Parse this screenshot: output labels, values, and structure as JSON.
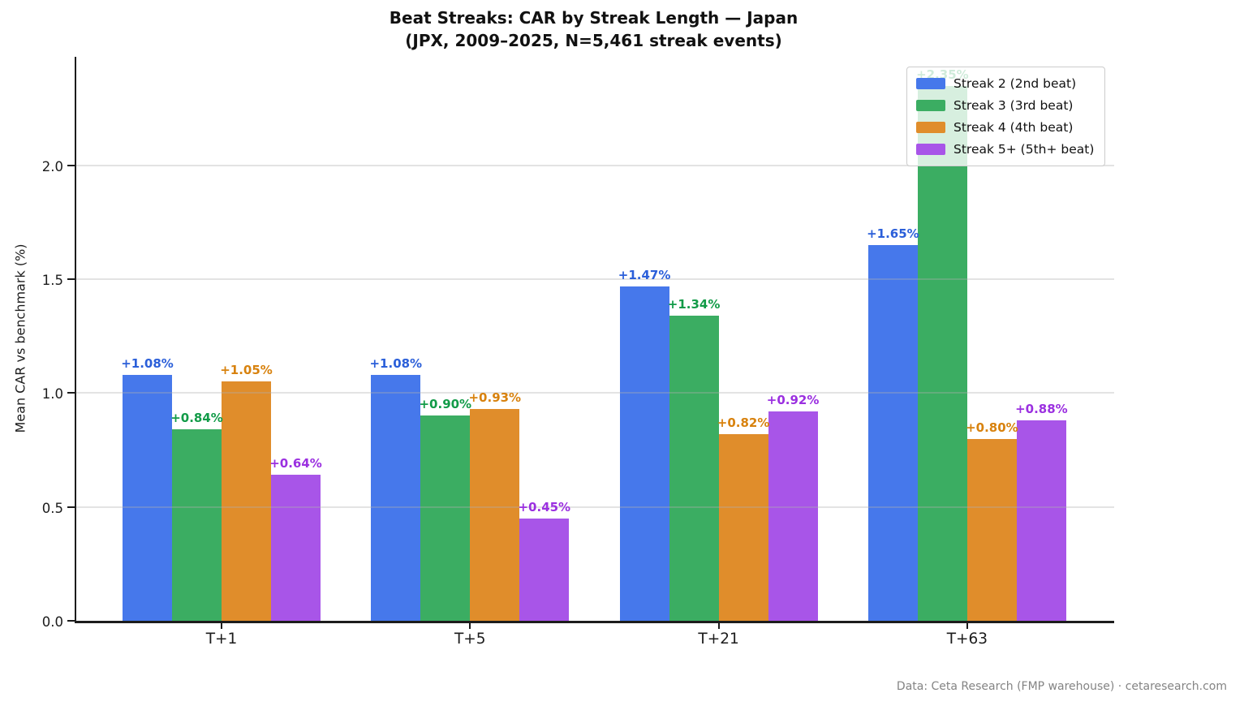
{
  "chart_data": {
    "type": "bar",
    "title": "Beat Streaks: CAR by Streak Length — Japan",
    "subtitle": "(JPX, 2009–2025, N=5,461 streak events)",
    "ylabel": "Mean CAR vs benchmark (%)",
    "categories": [
      "T+1",
      "T+5",
      "T+21",
      "T+63"
    ],
    "series": [
      {
        "name": "Streak 2 (2nd beat)",
        "color": "#4678EB",
        "label_color": "#2B5FD9",
        "values": [
          1.08,
          1.08,
          1.47,
          1.65
        ],
        "labels": [
          "+1.08%",
          "+1.08%",
          "+1.47%",
          "+1.65%"
        ]
      },
      {
        "name": "Streak 3 (3rd beat)",
        "color": "#3BAD62",
        "label_color": "#129B48",
        "values": [
          0.84,
          0.9,
          1.34,
          2.35
        ],
        "labels": [
          "+0.84%",
          "+0.90%",
          "+1.34%",
          "+2.35%"
        ]
      },
      {
        "name": "Streak 4 (4th beat)",
        "color": "#E08D2B",
        "label_color": "#D8820E",
        "values": [
          1.05,
          0.93,
          0.82,
          0.8
        ],
        "labels": [
          "+1.05%",
          "+0.93%",
          "+0.82%",
          "+0.80%"
        ]
      },
      {
        "name": "Streak 5+ (5th+ beat)",
        "color": "#A855E8",
        "label_color": "#9B30E0",
        "values": [
          0.64,
          0.45,
          0.92,
          0.88
        ],
        "labels": [
          "+0.64%",
          "+0.45%",
          "+0.92%",
          "+0.88%"
        ]
      }
    ],
    "ytick_labels": [
      "0.0",
      "0.5",
      "1.0",
      "1.5",
      "2.0"
    ],
    "ytick_values": [
      0,
      0.5,
      1.0,
      1.5,
      2.0
    ],
    "ylim": [
      0,
      2.477
    ],
    "grid": true,
    "legend_position": "upper right"
  },
  "footer": {
    "text": "Data: Ceta Research (FMP warehouse) · cetaresearch.com"
  }
}
